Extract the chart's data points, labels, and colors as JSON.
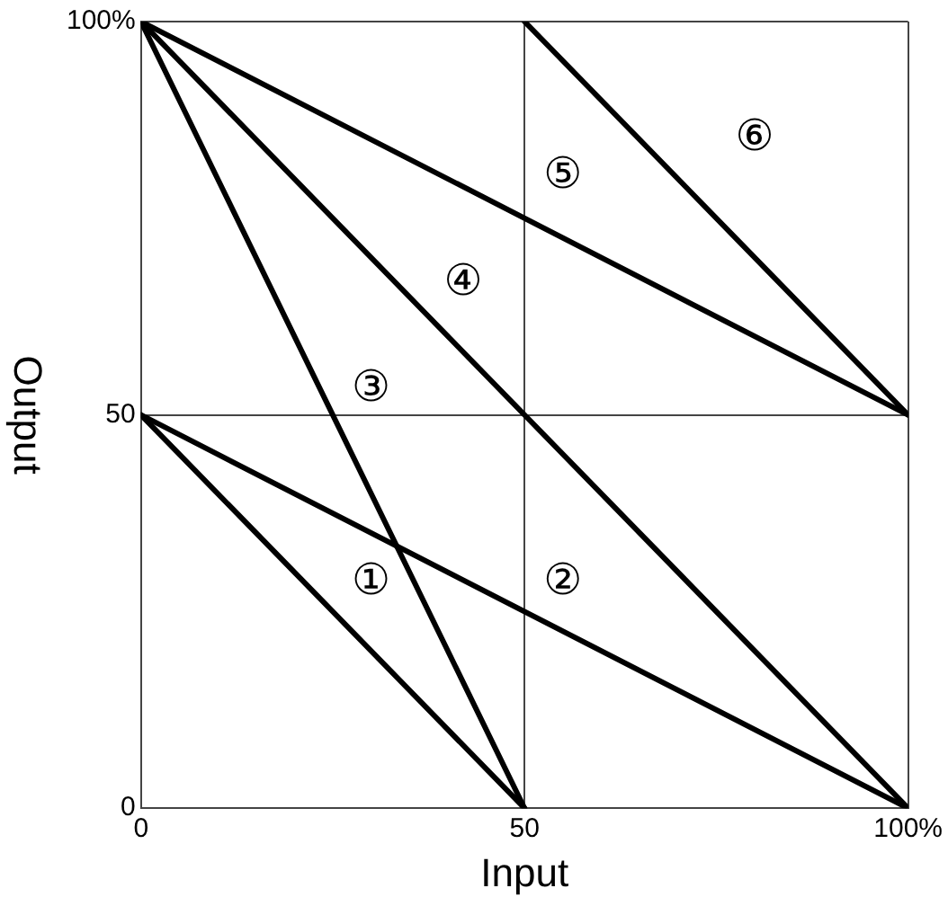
{
  "chart_data": {
    "type": "line",
    "xlabel": "Input",
    "ylabel": "Output",
    "xlim": [
      0,
      100
    ],
    "ylim": [
      0,
      100
    ],
    "xticks": [
      0,
      50,
      {
        "value": 100,
        "label": "100%"
      }
    ],
    "yticks": [
      0,
      50,
      {
        "value": 100,
        "label": "100%"
      }
    ],
    "grid": true,
    "legend": false,
    "line_style": "solid",
    "series": [
      {
        "name": "①",
        "color": "#000000",
        "x": [
          0,
          50
        ],
        "values": [
          50,
          0
        ]
      },
      {
        "name": "②",
        "color": "#000000",
        "x": [
          0,
          100
        ],
        "values": [
          50,
          0
        ]
      },
      {
        "name": "③",
        "color": "#000000",
        "x": [
          0,
          50
        ],
        "values": [
          100,
          0
        ]
      },
      {
        "name": "④",
        "color": "#000000",
        "x": [
          0,
          100
        ],
        "values": [
          100,
          0
        ]
      },
      {
        "name": "⑤",
        "color": "#000000",
        "x": [
          0,
          100
        ],
        "values": [
          100,
          50
        ]
      },
      {
        "name": "⑥",
        "color": "#000000",
        "x": [
          50,
          100
        ],
        "values": [
          100,
          50
        ]
      }
    ]
  }
}
